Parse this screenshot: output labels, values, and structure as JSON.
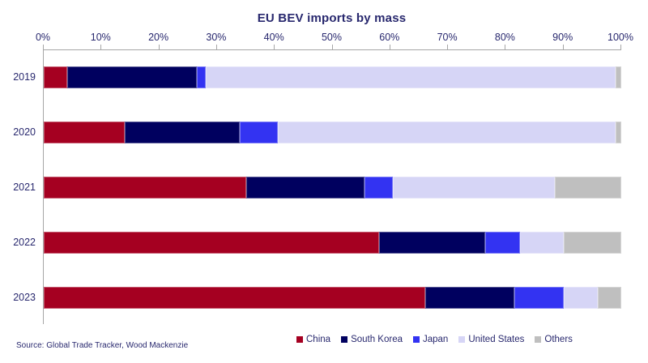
{
  "title": "EU BEV imports by mass",
  "source": "Source: Global Trade Tracker, Wood Mackenzie",
  "colors": {
    "china": "#A50021",
    "south_korea": "#00005F",
    "japan": "#3333F2",
    "united_states": "#D6D5F6",
    "others": "#BFBFBF",
    "text": "#28286E",
    "axis": "#A6A6A6",
    "background": "#FFFFFF"
  },
  "chart_data": {
    "type": "bar",
    "orientation": "horizontal",
    "stacked": true,
    "title": "EU BEV imports by mass",
    "categories": [
      "2019",
      "2020",
      "2021",
      "2022",
      "2023"
    ],
    "series": [
      {
        "name": "China",
        "color": "#A50021",
        "values": [
          4,
          14,
          35,
          58,
          66
        ]
      },
      {
        "name": "South Korea",
        "color": "#00005F",
        "values": [
          22.5,
          20,
          20.5,
          18.5,
          15.5
        ]
      },
      {
        "name": "Japan",
        "color": "#3333F2",
        "values": [
          1.5,
          6.5,
          5,
          6,
          8.5
        ]
      },
      {
        "name": "United States",
        "color": "#D6D5F6",
        "values": [
          71,
          58.5,
          28,
          7.5,
          6
        ]
      },
      {
        "name": "Others",
        "color": "#BFBFBF",
        "values": [
          1,
          1,
          11.5,
          10,
          4
        ]
      }
    ],
    "x_axis": {
      "position": "top",
      "min": 0,
      "max": 100,
      "ticks": [
        "0%",
        "10%",
        "20%",
        "30%",
        "40%",
        "50%",
        "60%",
        "70%",
        "80%",
        "90%",
        "100%"
      ]
    },
    "legend_position": "bottom",
    "grid": false,
    "units": "% of imports by mass"
  }
}
